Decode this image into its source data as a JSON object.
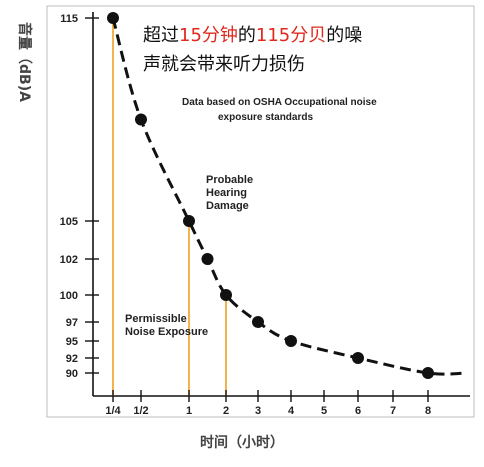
{
  "chart_data": {
    "type": "line",
    "title_parts": [
      {
        "text": "超过",
        "color": "#111111"
      },
      {
        "text": "15分钟",
        "color": "#e0281e"
      },
      {
        "text": "的",
        "color": "#111111"
      },
      {
        "text": "115分贝",
        "color": "#e0281e"
      },
      {
        "text": "的噪",
        "color": "#111111"
      }
    ],
    "title_line2": "声就会带来听力损伤",
    "xlabel": "时间（小时）",
    "ylabel": "音量（dB)A",
    "x_ticks": [
      {
        "value": 0.25,
        "label": "1/4"
      },
      {
        "value": 0.5,
        "label": "1/2"
      },
      {
        "value": 1,
        "label": "1"
      },
      {
        "value": 2,
        "label": "2"
      },
      {
        "value": 3,
        "label": "3"
      },
      {
        "value": 4,
        "label": "4"
      },
      {
        "value": 5,
        "label": "5"
      },
      {
        "value": 6,
        "label": "6"
      },
      {
        "value": 7,
        "label": "7"
      },
      {
        "value": 8,
        "label": "8"
      }
    ],
    "y_ticks": [
      {
        "value": 115,
        "label": "115"
      },
      {
        "value": 105,
        "label": "105"
      },
      {
        "value": 102,
        "label": "102"
      },
      {
        "value": 100,
        "label": "100"
      },
      {
        "value": 97,
        "label": "97"
      },
      {
        "value": 95,
        "label": "95"
      },
      {
        "value": 92,
        "label": "92"
      },
      {
        "value": 90,
        "label": "90"
      }
    ],
    "series": [
      {
        "points": [
          {
            "x": 0.25,
            "y": 115
          },
          {
            "x": 0.5,
            "y": 110
          },
          {
            "x": 1,
            "y": 105
          },
          {
            "x": 1.5,
            "y": 102
          },
          {
            "x": 2,
            "y": 100
          },
          {
            "x": 3,
            "y": 97
          },
          {
            "x": 4,
            "y": 95
          },
          {
            "x": 6,
            "y": 92
          },
          {
            "x": 8,
            "y": 90
          }
        ]
      }
    ],
    "guide_lines_x": [
      0.25,
      1,
      2
    ],
    "annotations": [
      {
        "lines": [
          "Data based on OSHA Occupational noise",
          "exposure standards"
        ]
      },
      {
        "lines": [
          "Probable",
          "Hearing",
          "Damage"
        ]
      },
      {
        "lines": [
          "Permissible",
          "Noise Exposure"
        ]
      }
    ],
    "colors": {
      "curve": "#111111",
      "guide": "#f0a020",
      "title_highlight": "#e0281e",
      "axis": "#111111"
    },
    "grid": false,
    "legend": "none"
  }
}
